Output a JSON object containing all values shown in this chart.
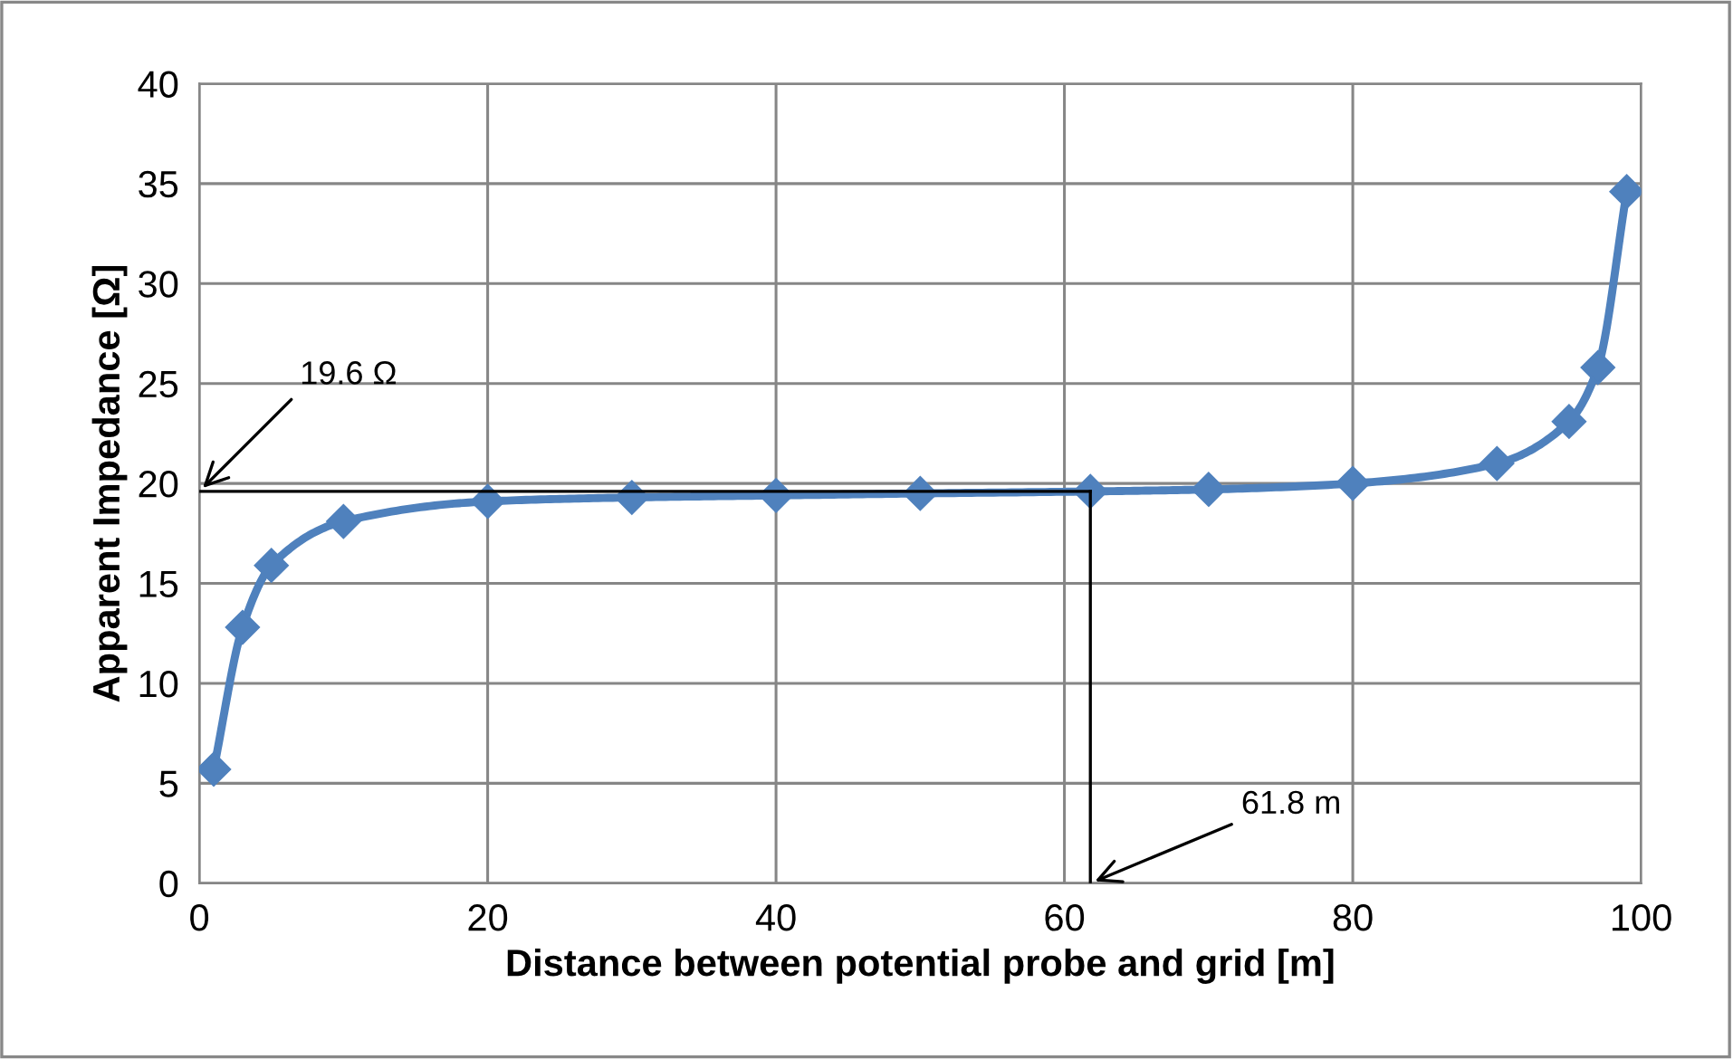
{
  "chart_data": {
    "type": "line",
    "xlabel": "Distance between potential probe and grid [m]",
    "ylabel": "Apparent Impedance [Ω]",
    "xlim": [
      0,
      100
    ],
    "xticks": [
      0,
      20,
      40,
      60,
      80,
      100
    ],
    "ylim": [
      0,
      40
    ],
    "yticks": [
      0,
      5,
      10,
      15,
      20,
      25,
      30,
      35,
      40
    ],
    "grid": true,
    "marker": "diamond",
    "line_style": "solid",
    "series": [
      {
        "color": "#4f81bd",
        "x": [
          1,
          3,
          5,
          10,
          20,
          30,
          40,
          50,
          61.8,
          70,
          80,
          90,
          95,
          97,
          99
        ],
        "values": [
          5.7,
          12.8,
          15.9,
          18.1,
          19.1,
          19.3,
          19.4,
          19.5,
          19.6,
          19.7,
          20.0,
          21.0,
          23.1,
          25.8,
          34.6
        ]
      },
      {
        "type": "line",
        "color": "#000000",
        "marker": "none",
        "x": [
          0,
          61.8
        ],
        "values": [
          19.6,
          19.6
        ]
      },
      {
        "type": "line",
        "color": "#000000",
        "marker": "none",
        "x": [
          61.8,
          61.8
        ],
        "values": [
          0,
          19.6
        ]
      }
    ],
    "annotations": [
      {
        "text": "19.6 Ω",
        "x": 0,
        "y": 19.6
      },
      {
        "text": "61.8 m",
        "x": 61.8,
        "y": 0
      }
    ]
  }
}
